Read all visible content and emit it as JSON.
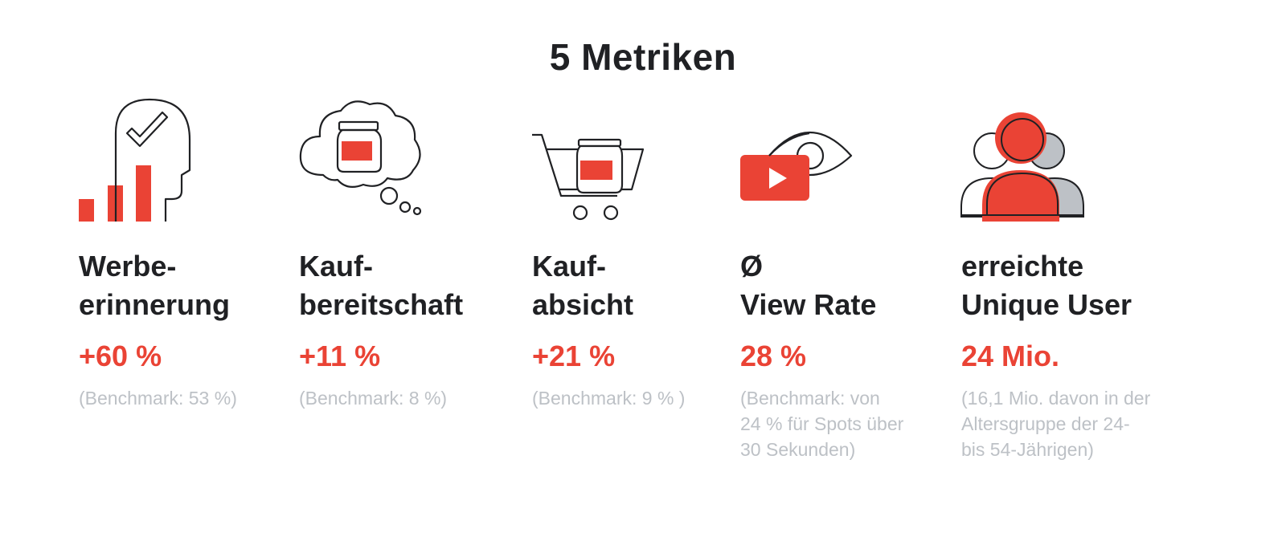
{
  "title": "5 Metriken",
  "colors": {
    "accent": "#ea4335",
    "text": "#202124",
    "muted": "#bdc1c6",
    "grey_shape": "#bdc1c6"
  },
  "metrics": [
    {
      "icon": "ad-recall-icon",
      "label_lines": [
        "Werbe-",
        "erinnerung"
      ],
      "value": "+60 %",
      "note_lines": [
        "(Benchmark: 53 %)"
      ]
    },
    {
      "icon": "purchase-consideration-icon",
      "label_lines": [
        "Kauf-",
        "bereitschaft"
      ],
      "value": "+11 %",
      "note_lines": [
        "(Benchmark: 8 %)"
      ]
    },
    {
      "icon": "purchase-intent-icon",
      "label_lines": [
        "Kauf-",
        "absicht"
      ],
      "value": "+21 %",
      "note_lines": [
        "(Benchmark: 9 % )"
      ]
    },
    {
      "icon": "view-rate-icon",
      "label_lines": [
        "Ø",
        "View Rate"
      ],
      "value": "28 %",
      "note_lines": [
        "(Benchmark: von",
        "24 % für Spots über",
        "30 Sekunden)"
      ]
    },
    {
      "icon": "unique-users-icon",
      "label_lines": [
        "erreichte",
        "Unique User"
      ],
      "value": "24 Mio.",
      "note_lines": [
        "(16,1 Mio. davon in der",
        "Altersgruppe der 24-",
        "bis 54-Jährigen)"
      ]
    }
  ]
}
